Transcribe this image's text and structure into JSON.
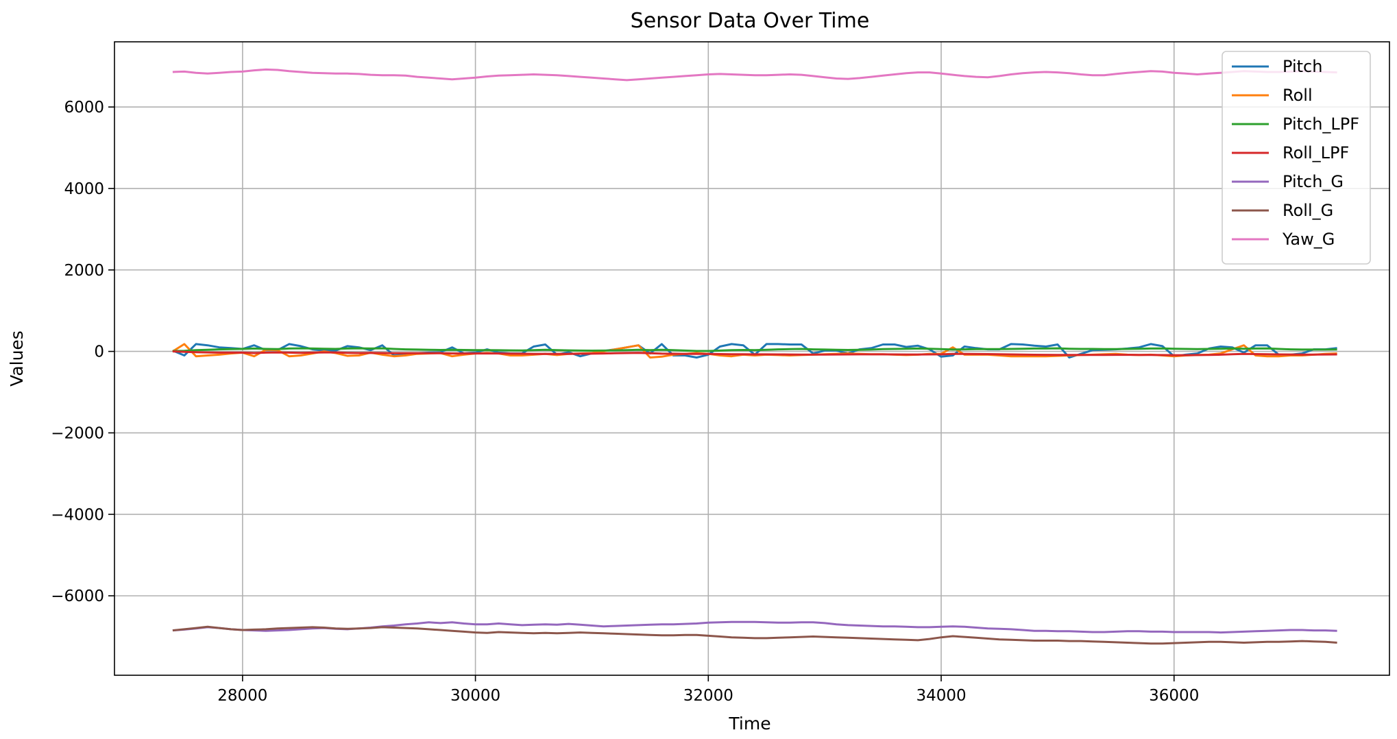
{
  "chart_data": {
    "type": "line",
    "title": "Sensor Data Over Time",
    "xlabel": "Time",
    "ylabel": "Values",
    "xlim": [
      26900,
      37850
    ],
    "ylim": [
      -7950,
      7600
    ],
    "xticks": [
      28000,
      30000,
      32000,
      34000,
      36000
    ],
    "xtick_labels": [
      "28000",
      "30000",
      "32000",
      "34000",
      "36000"
    ],
    "yticks": [
      -6000,
      -4000,
      -2000,
      0,
      2000,
      4000,
      6000
    ],
    "ytick_labels": [
      "−6000",
      "−4000",
      "−2000",
      "0",
      "2000",
      "4000",
      "6000"
    ],
    "grid": true,
    "legend_position": "top-right",
    "x": [
      27400,
      27500,
      27600,
      27700,
      27800,
      27900,
      28000,
      28100,
      28200,
      28300,
      28400,
      28500,
      28600,
      28700,
      28800,
      28900,
      29000,
      29100,
      29200,
      29300,
      29400,
      29500,
      29600,
      29700,
      29800,
      29900,
      30000,
      30100,
      30200,
      30300,
      30400,
      30500,
      30600,
      30700,
      30800,
      30900,
      31000,
      31100,
      31200,
      31300,
      31400,
      31500,
      31600,
      31700,
      31800,
      31900,
      32000,
      32100,
      32200,
      32300,
      32400,
      32500,
      32600,
      32700,
      32800,
      32900,
      33000,
      33100,
      33200,
      33300,
      33400,
      33500,
      33600,
      33700,
      33800,
      33900,
      34000,
      34100,
      34200,
      34300,
      34400,
      34500,
      34600,
      34700,
      34800,
      34900,
      35000,
      35100,
      35200,
      35300,
      35400,
      35500,
      35600,
      35700,
      35800,
      35900,
      36000,
      36100,
      36200,
      36300,
      36400,
      36500,
      36600,
      36700,
      36800,
      36900,
      37000,
      37100,
      37200,
      37300,
      37400
    ],
    "series": [
      {
        "name": "Pitch",
        "color": "#1f77b4",
        "values": [
          20,
          -100,
          180,
          150,
          100,
          80,
          60,
          150,
          30,
          30,
          180,
          130,
          50,
          20,
          20,
          130,
          100,
          30,
          150,
          -100,
          -80,
          -50,
          -30,
          -20,
          100,
          -50,
          -30,
          50,
          -30,
          -50,
          -50,
          120,
          170,
          -80,
          -20,
          -120,
          -50,
          10,
          50,
          100,
          150,
          -50,
          180,
          -100,
          -100,
          -150,
          -80,
          120,
          180,
          150,
          -80,
          180,
          180,
          170,
          170,
          -50,
          20,
          20,
          -50,
          50,
          80,
          170,
          170,
          110,
          140,
          50,
          -130,
          -100,
          120,
          80,
          50,
          50,
          180,
          170,
          140,
          120,
          170,
          -150,
          -60,
          30,
          40,
          50,
          70,
          100,
          180,
          130,
          -120,
          -80,
          -50,
          70,
          120,
          100,
          -30,
          150,
          150,
          -80,
          -80,
          -50,
          50,
          50,
          80
        ]
      },
      {
        "name": "Roll",
        "color": "#ff7f0e",
        "values": [
          0,
          180,
          -120,
          -100,
          -80,
          -50,
          -30,
          -120,
          40,
          30,
          -120,
          -100,
          -50,
          0,
          -40,
          -110,
          -100,
          -30,
          -80,
          -120,
          -100,
          -60,
          -50,
          -40,
          -120,
          -80,
          -50,
          -40,
          -50,
          -100,
          -100,
          -80,
          -60,
          -90,
          -60,
          -50,
          -40,
          0,
          50,
          100,
          150,
          -150,
          -130,
          -80,
          -60,
          -40,
          -60,
          -100,
          -120,
          -80,
          -100,
          -80,
          -90,
          -100,
          -90,
          -80,
          -70,
          -60,
          -50,
          -60,
          -70,
          -70,
          -80,
          -90,
          -80,
          -60,
          -60,
          100,
          -80,
          -80,
          -80,
          -100,
          -120,
          -120,
          -120,
          -120,
          -110,
          -100,
          -90,
          -80,
          -70,
          -60,
          -80,
          -90,
          -80,
          -100,
          -120,
          -100,
          -90,
          -80,
          -50,
          50,
          150,
          -100,
          -120,
          -120,
          -100,
          -100,
          -80,
          -60,
          -50
        ]
      },
      {
        "name": "Pitch_LPF",
        "color": "#2ca02c",
        "values": [
          10,
          15,
          30,
          40,
          50,
          55,
          60,
          70,
          60,
          55,
          70,
          75,
          70,
          65,
          60,
          70,
          75,
          70,
          75,
          60,
          50,
          45,
          40,
          35,
          40,
          35,
          30,
          32,
          28,
          25,
          22,
          30,
          40,
          30,
          25,
          20,
          18,
          20,
          25,
          30,
          40,
          30,
          40,
          30,
          20,
          10,
          10,
          20,
          30,
          35,
          30,
          40,
          50,
          55,
          60,
          50,
          45,
          40,
          35,
          40,
          45,
          55,
          60,
          65,
          70,
          65,
          55,
          45,
          50,
          55,
          55,
          55,
          60,
          65,
          70,
          70,
          75,
          65,
          60,
          60,
          58,
          58,
          60,
          65,
          70,
          72,
          65,
          60,
          55,
          60,
          65,
          70,
          65,
          70,
          72,
          60,
          50,
          45,
          45,
          46,
          48
        ]
      },
      {
        "name": "Roll_LPF",
        "color": "#d62728",
        "values": [
          0,
          -10,
          -20,
          -25,
          -30,
          -30,
          -30,
          -40,
          -30,
          -25,
          -30,
          -35,
          -30,
          -25,
          -25,
          -35,
          -40,
          -35,
          -40,
          -45,
          -45,
          -45,
          -45,
          -45,
          -50,
          -50,
          -50,
          -50,
          -50,
          -55,
          -58,
          -60,
          -60,
          -62,
          -60,
          -58,
          -55,
          -50,
          -45,
          -40,
          -35,
          -45,
          -55,
          -58,
          -60,
          -60,
          -60,
          -65,
          -70,
          -70,
          -72,
          -72,
          -74,
          -76,
          -78,
          -78,
          -78,
          -76,
          -74,
          -72,
          -72,
          -72,
          -74,
          -76,
          -76,
          -74,
          -72,
          -60,
          -62,
          -64,
          -66,
          -70,
          -74,
          -78,
          -82,
          -84,
          -86,
          -88,
          -88,
          -88,
          -86,
          -84,
          -84,
          -86,
          -88,
          -90,
          -92,
          -92,
          -90,
          -88,
          -80,
          -70,
          -60,
          -65,
          -70,
          -74,
          -76,
          -78,
          -78,
          -76,
          -74
        ]
      },
      {
        "name": "Pitch_G",
        "color": "#9467bd",
        "values": [
          -6850,
          -6830,
          -6800,
          -6770,
          -6790,
          -6820,
          -6840,
          -6850,
          -6860,
          -6850,
          -6840,
          -6820,
          -6800,
          -6790,
          -6810,
          -6820,
          -6800,
          -6780,
          -6750,
          -6730,
          -6700,
          -6680,
          -6650,
          -6670,
          -6650,
          -6680,
          -6700,
          -6700,
          -6680,
          -6700,
          -6720,
          -6710,
          -6700,
          -6710,
          -6690,
          -6710,
          -6730,
          -6750,
          -6740,
          -6730,
          -6720,
          -6710,
          -6700,
          -6700,
          -6690,
          -6680,
          -6660,
          -6650,
          -6640,
          -6640,
          -6640,
          -6650,
          -6660,
          -6660,
          -6650,
          -6650,
          -6670,
          -6700,
          -6720,
          -6730,
          -6740,
          -6750,
          -6750,
          -6760,
          -6770,
          -6770,
          -6760,
          -6750,
          -6760,
          -6780,
          -6800,
          -6810,
          -6820,
          -6840,
          -6860,
          -6860,
          -6870,
          -6870,
          -6880,
          -6890,
          -6890,
          -6880,
          -6870,
          -6870,
          -6880,
          -6880,
          -6890,
          -6890,
          -6890,
          -6890,
          -6900,
          -6890,
          -6880,
          -6870,
          -6860,
          -6850,
          -6840,
          -6840,
          -6850,
          -6850,
          -6860
        ]
      },
      {
        "name": "Roll_G",
        "color": "#8c564b",
        "values": [
          -6850,
          -6820,
          -6790,
          -6760,
          -6790,
          -6820,
          -6840,
          -6830,
          -6820,
          -6800,
          -6790,
          -6780,
          -6770,
          -6780,
          -6800,
          -6810,
          -6800,
          -6790,
          -6770,
          -6780,
          -6790,
          -6800,
          -6820,
          -6840,
          -6860,
          -6880,
          -6900,
          -6910,
          -6890,
          -6900,
          -6910,
          -6920,
          -6910,
          -6920,
          -6910,
          -6900,
          -6910,
          -6920,
          -6930,
          -6940,
          -6950,
          -6960,
          -6970,
          -6970,
          -6960,
          -6960,
          -6980,
          -7000,
          -7020,
          -7030,
          -7040,
          -7040,
          -7030,
          -7020,
          -7010,
          -7000,
          -7010,
          -7020,
          -7030,
          -7040,
          -7050,
          -7060,
          -7070,
          -7080,
          -7090,
          -7060,
          -7020,
          -6990,
          -7010,
          -7030,
          -7050,
          -7070,
          -7080,
          -7090,
          -7100,
          -7100,
          -7100,
          -7110,
          -7110,
          -7120,
          -7130,
          -7140,
          -7150,
          -7160,
          -7170,
          -7170,
          -7160,
          -7150,
          -7140,
          -7130,
          -7130,
          -7140,
          -7150,
          -7140,
          -7130,
          -7130,
          -7120,
          -7110,
          -7120,
          -7130,
          -7150
        ]
      },
      {
        "name": "Yaw_G",
        "color": "#e377c2",
        "values": [
          6860,
          6870,
          6840,
          6820,
          6840,
          6860,
          6870,
          6900,
          6920,
          6910,
          6880,
          6860,
          6840,
          6830,
          6820,
          6820,
          6810,
          6790,
          6780,
          6780,
          6770,
          6740,
          6720,
          6700,
          6680,
          6700,
          6720,
          6750,
          6770,
          6780,
          6790,
          6800,
          6790,
          6780,
          6760,
          6740,
          6720,
          6700,
          6680,
          6660,
          6680,
          6700,
          6720,
          6740,
          6760,
          6780,
          6800,
          6810,
          6800,
          6790,
          6780,
          6780,
          6790,
          6800,
          6790,
          6760,
          6730,
          6700,
          6690,
          6710,
          6740,
          6770,
          6800,
          6830,
          6850,
          6850,
          6820,
          6790,
          6760,
          6740,
          6730,
          6760,
          6800,
          6830,
          6850,
          6860,
          6850,
          6830,
          6800,
          6780,
          6780,
          6810,
          6840,
          6860,
          6880,
          6870,
          6840,
          6820,
          6800,
          6820,
          6840,
          6860,
          6880,
          6870,
          6860,
          6860,
          6870,
          6880,
          6870,
          6860,
          6850
        ]
      }
    ]
  }
}
